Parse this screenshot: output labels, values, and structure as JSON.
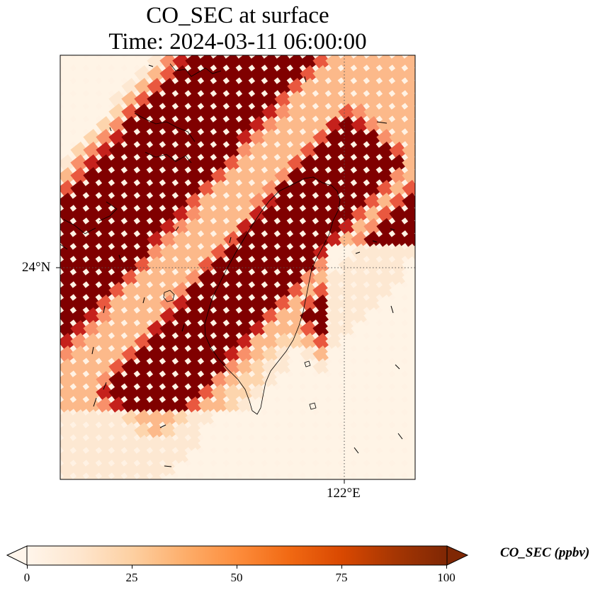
{
  "title": {
    "line1": "CO_SEC at surface",
    "line2": "Time: 2024-03-11 06:00:00"
  },
  "map": {
    "lat_tick_label": "24°N",
    "lon_tick_label": "122°E",
    "field": "CO_SEC",
    "colormap": [
      "#fff5eb",
      "#fee6ce",
      "#fdd0a2",
      "#fdae6b",
      "#fd8d3c",
      "#f16913",
      "#d94801",
      "#a63603",
      "#7f2704"
    ],
    "palette": [
      "#fff4e6",
      "#fde8d2",
      "#fdd5ad",
      "#fcb98a",
      "#f8906a",
      "#e9583f",
      "#c5211c",
      "#800000"
    ]
  },
  "colorbar": {
    "label": "CO_SEC (ppbv)",
    "min": 0,
    "max": 100,
    "extend": "both",
    "ticks": [
      "0",
      "25",
      "50",
      "75",
      "100"
    ]
  }
}
